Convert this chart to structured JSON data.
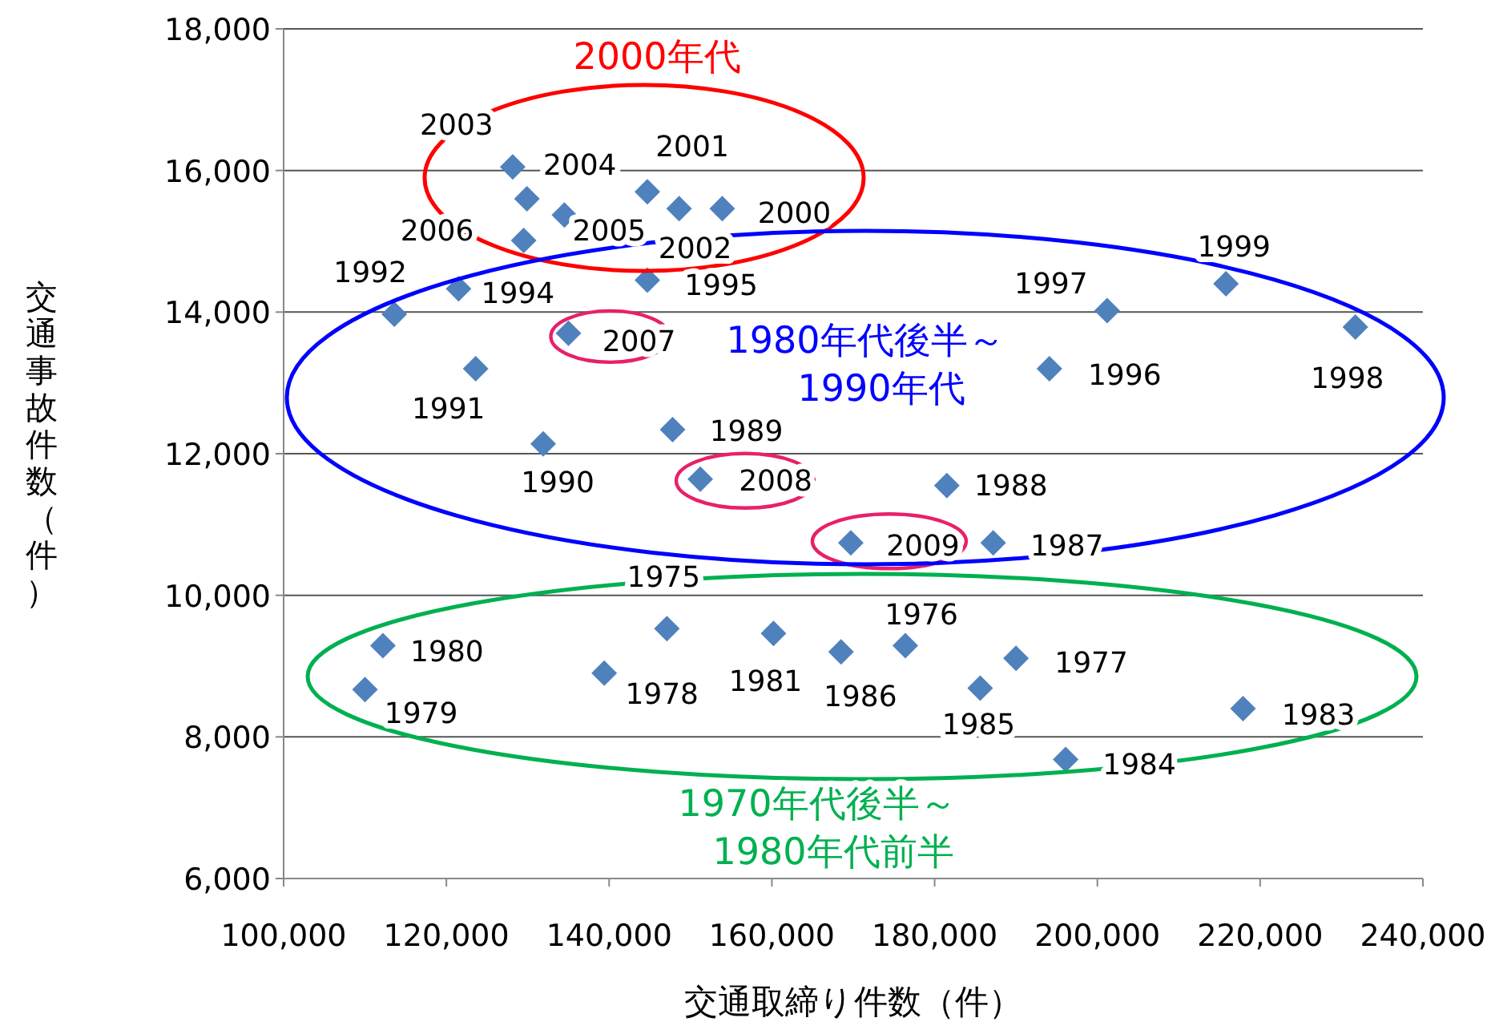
{
  "chart_data": {
    "type": "scatter",
    "xlabel": "交通取締り件数（件）",
    "ylabel": "交通事故件数（件）",
    "x": [
      128150,
      129900,
      144700,
      148600,
      153900,
      134500,
      129500,
      144700,
      121500,
      113600,
      135000,
      201200,
      215800,
      231700,
      194100,
      123600,
      147800,
      131900,
      151200,
      181500,
      169700,
      187200,
      147100,
      160200,
      176400,
      112200,
      168500,
      190000,
      139400,
      110000,
      185600,
      217900,
      196100
    ],
    "series": [
      {
        "color": "#4f81bd",
        "values": [
          16050,
          15600,
          15700,
          15460,
          15460,
          15370,
          15010,
          14450,
          14330,
          13970,
          13700,
          14020,
          14400,
          13790,
          13200,
          13200,
          12340,
          12140,
          11640,
          11550,
          10740,
          10740,
          9530,
          9460,
          9290,
          9290,
          9200,
          9110,
          8900,
          8670,
          8690,
          8400,
          7680
        ]
      }
    ],
    "marker": "diamond",
    "xlim": [
      100000,
      240000
    ],
    "xticks": [
      {
        "value": 100000,
        "label": "100,000"
      },
      {
        "value": 120000,
        "label": "120,000"
      },
      {
        "value": 140000,
        "label": "140,000"
      },
      {
        "value": 160000,
        "label": "160,000"
      },
      {
        "value": 180000,
        "label": "180,000"
      },
      {
        "value": 200000,
        "label": "200,000"
      },
      {
        "value": 220000,
        "label": "220,000"
      },
      {
        "value": 240000,
        "label": "240,000"
      }
    ],
    "ylim": [
      6000,
      18000
    ],
    "yticks": [
      {
        "value": 6000,
        "label": "6,000"
      },
      {
        "value": 8000,
        "label": "8,000"
      },
      {
        "value": 10000,
        "label": "10,000"
      },
      {
        "value": 12000,
        "label": "12,000"
      },
      {
        "value": 14000,
        "label": "14,000"
      },
      {
        "value": 16000,
        "label": "16,000"
      },
      {
        "value": 18000,
        "label": "18,000"
      }
    ],
    "grid": "y",
    "annotations": [
      {
        "text": "2003",
        "x": 128150,
        "y": 16050
      },
      {
        "text": "2004",
        "x": 129900,
        "y": 15600
      },
      {
        "text": "2001",
        "x": 144700,
        "y": 15700
      },
      {
        "text": "2002",
        "x": 148600,
        "y": 15460
      },
      {
        "text": "2000",
        "x": 153900,
        "y": 15460
      },
      {
        "text": "2005",
        "x": 134500,
        "y": 15370
      },
      {
        "text": "2006",
        "x": 129500,
        "y": 15010
      },
      {
        "text": "1995",
        "x": 144700,
        "y": 14450
      },
      {
        "text": "1994",
        "x": 121500,
        "y": 14330
      },
      {
        "text": "1992",
        "x": 113600,
        "y": 13970
      },
      {
        "text": "2007",
        "x": 135000,
        "y": 13700
      },
      {
        "text": "1997",
        "x": 201200,
        "y": 14020
      },
      {
        "text": "1999",
        "x": 215800,
        "y": 14400
      },
      {
        "text": "1998",
        "x": 231700,
        "y": 13790
      },
      {
        "text": "1996",
        "x": 194100,
        "y": 13200
      },
      {
        "text": "1991",
        "x": 123600,
        "y": 13200
      },
      {
        "text": "1989",
        "x": 147800,
        "y": 12340
      },
      {
        "text": "1990",
        "x": 131900,
        "y": 12140
      },
      {
        "text": "2008",
        "x": 151200,
        "y": 11640
      },
      {
        "text": "1988",
        "x": 181500,
        "y": 11550
      },
      {
        "text": "2009",
        "x": 169700,
        "y": 10740
      },
      {
        "text": "1987",
        "x": 187200,
        "y": 10740
      },
      {
        "text": "1975",
        "x": 147100,
        "y": 9530
      },
      {
        "text": "1981",
        "x": 160200,
        "y": 9460
      },
      {
        "text": "1976",
        "x": 176400,
        "y": 9290
      },
      {
        "text": "1980",
        "x": 112200,
        "y": 9290
      },
      {
        "text": "1986",
        "x": 168500,
        "y": 9200
      },
      {
        "text": "1977",
        "x": 190000,
        "y": 9110
      },
      {
        "text": "1978",
        "x": 139400,
        "y": 8900
      },
      {
        "text": "1979",
        "x": 110000,
        "y": 8670
      },
      {
        "text": "1985",
        "x": 185600,
        "y": 8690
      },
      {
        "text": "1983",
        "x": 217900,
        "y": 8400
      },
      {
        "text": "1984",
        "x": 196100,
        "y": 7680
      },
      "2000年代",
      "1980年代後半～\n1990年代",
      "1970年代後半～\n1980年代前半"
    ]
  }
}
